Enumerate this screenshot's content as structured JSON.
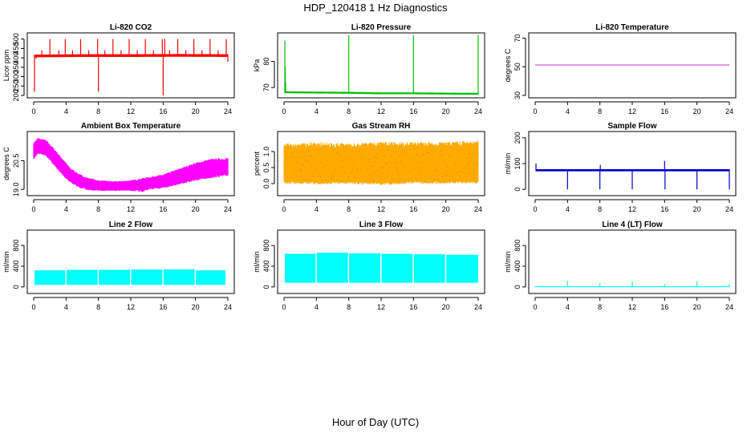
{
  "figure": {
    "title": "HDP_120418  1 Hz Diagnostics",
    "xlabel": "Hour of Day (UTC)"
  },
  "chart_data": [
    {
      "type": "line",
      "title": "Li-820 CO2",
      "ylabel": "Licor ppm",
      "color": "#ff0000",
      "xlim": [
        0,
        24
      ],
      "ylim": [
        200,
        520
      ],
      "xticks": [
        0,
        4,
        8,
        12,
        16,
        20,
        24
      ],
      "yticks": [
        200,
        250,
        300,
        350,
        400,
        450,
        500
      ],
      "style": "flat-spikes",
      "series": [
        {
          "baseline": [
            [
              0.1,
              410
            ],
            [
              6,
              412
            ],
            [
              12,
              412
            ],
            [
              18,
              413
            ],
            [
              24,
              412
            ]
          ],
          "band": 10,
          "spikes": [
            [
              0.1,
              220
            ],
            [
              0.3,
              395
            ],
            [
              1.0,
              440
            ],
            [
              2.0,
              500
            ],
            [
              3.1,
              440
            ],
            [
              3.9,
              500
            ],
            [
              4.8,
              440
            ],
            [
              5.8,
              500
            ],
            [
              6.8,
              440
            ],
            [
              7.9,
              500
            ],
            [
              8.0,
              220
            ],
            [
              8.8,
              440
            ],
            [
              9.8,
              500
            ],
            [
              10.8,
              440
            ],
            [
              11.8,
              500
            ],
            [
              12.8,
              440
            ],
            [
              13.8,
              500
            ],
            [
              14.8,
              440
            ],
            [
              15.9,
              500
            ],
            [
              16.0,
              200
            ],
            [
              16.2,
              500
            ],
            [
              16.8,
              440
            ],
            [
              17.8,
              500
            ],
            [
              18.8,
              440
            ],
            [
              19.8,
              500
            ],
            [
              20.8,
              440
            ],
            [
              21.8,
              500
            ],
            [
              22.8,
              440
            ],
            [
              23.8,
              500
            ],
            [
              24.0,
              380
            ]
          ]
        }
      ]
    },
    {
      "type": "line",
      "title": "Li-820 Pressure",
      "ylabel": "kPa",
      "color": "#00c000",
      "xlim": [
        0,
        24
      ],
      "ylim": [
        67,
        90
      ],
      "xticks": [
        0,
        4,
        8,
        12,
        16,
        20,
        24
      ],
      "yticks": [
        70,
        80
      ],
      "style": "flat-spikes",
      "series": [
        {
          "baseline": [
            [
              0.1,
              68.2
            ],
            [
              8,
              68.0
            ],
            [
              12,
              67.8
            ],
            [
              16,
              67.8
            ],
            [
              24,
              67.6
            ]
          ],
          "band": 0.4,
          "spikes": [
            [
              0.1,
              88
            ],
            [
              0.15,
              78
            ],
            [
              0.2,
              72
            ],
            [
              8.0,
              90
            ],
            [
              16.0,
              90
            ],
            [
              24.0,
              90
            ]
          ]
        }
      ]
    },
    {
      "type": "line",
      "title": "Li-820 Temperature",
      "ylabel": "degrees C",
      "color": "#cc33cc",
      "xlim": [
        0,
        24
      ],
      "ylim": [
        30,
        72
      ],
      "xticks": [
        0,
        4,
        8,
        12,
        16,
        20,
        24
      ],
      "yticks": [
        30,
        50,
        70
      ],
      "style": "line",
      "series": [
        {
          "points": [
            [
              0,
              51.3
            ],
            [
              24,
              51.3
            ]
          ]
        }
      ]
    },
    {
      "type": "area",
      "title": "Ambient Box Temperature",
      "ylabel": "degrees C",
      "color": "#ff00ff",
      "xlim": [
        0,
        24
      ],
      "ylim": [
        18.8,
        21.9
      ],
      "xticks": [
        0,
        4,
        8,
        12,
        16,
        20,
        24
      ],
      "yticks": [
        19.0,
        20.5
      ],
      "style": "band",
      "series": [
        {
          "upper": [
            [
              0,
              21.4
            ],
            [
              0.5,
              21.65
            ],
            [
              1.5,
              21.55
            ],
            [
              2.5,
              21.1
            ],
            [
              3.5,
              20.6
            ],
            [
              4.5,
              20.1
            ],
            [
              5.5,
              19.8
            ],
            [
              6.5,
              19.6
            ],
            [
              8,
              19.45
            ],
            [
              10,
              19.4
            ],
            [
              12,
              19.45
            ],
            [
              14,
              19.6
            ],
            [
              16,
              19.75
            ],
            [
              18,
              20.05
            ],
            [
              20,
              20.35
            ],
            [
              22,
              20.55
            ],
            [
              24,
              20.6
            ]
          ],
          "lower": [
            [
              0,
              20.6
            ],
            [
              0.5,
              20.9
            ],
            [
              1.5,
              20.8
            ],
            [
              2.5,
              20.3
            ],
            [
              3.5,
              19.8
            ],
            [
              4.5,
              19.4
            ],
            [
              5.5,
              19.15
            ],
            [
              6.5,
              19.0
            ],
            [
              8,
              18.95
            ],
            [
              10,
              18.95
            ],
            [
              12,
              18.95
            ],
            [
              13.5,
              18.9
            ],
            [
              14,
              19.0
            ],
            [
              16,
              19.1
            ],
            [
              18,
              19.3
            ],
            [
              20,
              19.5
            ],
            [
              22,
              19.65
            ],
            [
              24,
              19.75
            ]
          ]
        }
      ]
    },
    {
      "type": "area",
      "title": "Gas Stream RH",
      "ylabel": "percent",
      "color": "#ffaa00",
      "color2": "#806000",
      "xlim": [
        0,
        24
      ],
      "ylim": [
        -0.3,
        1.55
      ],
      "xticks": [
        0,
        4,
        8,
        12,
        16,
        20,
        24
      ],
      "yticks": [
        0.0,
        0.5,
        1.0
      ],
      "style": "dense",
      "series": [
        {
          "upper": [
            [
              0,
              1.25
            ],
            [
              4,
              1.3
            ],
            [
              8,
              1.25
            ],
            [
              12,
              1.3
            ],
            [
              16,
              1.3
            ],
            [
              20,
              1.3
            ],
            [
              24,
              1.35
            ]
          ],
          "lower": [
            [
              0,
              0.0
            ],
            [
              4,
              -0.02
            ],
            [
              8,
              0.0
            ],
            [
              12,
              -0.05
            ],
            [
              16,
              0.0
            ],
            [
              20,
              0.0
            ],
            [
              24,
              0.0
            ]
          ]
        }
      ]
    },
    {
      "type": "line",
      "title": "Sample Flow",
      "ylabel": "ml/min",
      "color": "#0000cc",
      "xlim": [
        0,
        24
      ],
      "ylim": [
        -15,
        215
      ],
      "xticks": [
        0,
        4,
        8,
        12,
        16,
        20,
        24
      ],
      "yticks": [
        0,
        100,
        200
      ],
      "style": "flat-spikes",
      "series": [
        {
          "baseline": [
            [
              0.1,
              74
            ],
            [
              24,
              74
            ]
          ],
          "band": 5,
          "spikes": [
            [
              0.1,
              100
            ],
            [
              4.0,
              0
            ],
            [
              8.0,
              0
            ],
            [
              8.05,
              95
            ],
            [
              12.0,
              0
            ],
            [
              16.0,
              110
            ],
            [
              16.05,
              0
            ],
            [
              20.0,
              0
            ],
            [
              24.0,
              0
            ]
          ]
        }
      ]
    },
    {
      "type": "area",
      "title": "Line 2 Flow",
      "ylabel": "ml/min",
      "color": "#00ffff",
      "xlim": [
        0,
        24
      ],
      "ylim": [
        -80,
        1050
      ],
      "xticks": [
        0,
        4,
        8,
        12,
        16,
        20,
        24
      ],
      "yticks": [
        0,
        400,
        800
      ],
      "style": "segments",
      "series": [
        {
          "segments": [
            [
              0.1,
              3.9,
              320
            ],
            [
              4.05,
              7.9,
              330
            ],
            [
              8.05,
              11.9,
              330
            ],
            [
              12.05,
              15.9,
              335
            ],
            [
              16.05,
              19.9,
              340
            ],
            [
              20.05,
              23.7,
              320
            ]
          ],
          "lower": 40
        }
      ]
    },
    {
      "type": "area",
      "title": "Line 3 Flow",
      "ylabel": "ml/min",
      "color": "#00ffff",
      "xlim": [
        0,
        24
      ],
      "ylim": [
        -80,
        1050
      ],
      "xticks": [
        0,
        4,
        8,
        12,
        16,
        20,
        24
      ],
      "yticks": [
        0,
        400,
        800
      ],
      "style": "segments",
      "series": [
        {
          "segments": [
            [
              0.1,
              3.9,
              640
            ],
            [
              4.05,
              7.9,
              660
            ],
            [
              8.05,
              11.9,
              650
            ],
            [
              12.05,
              15.9,
              640
            ],
            [
              16.05,
              19.9,
              630
            ],
            [
              20.05,
              24.0,
              620
            ]
          ],
          "lower": 80
        }
      ]
    },
    {
      "type": "line",
      "title": "Line 4 (LT) Flow",
      "ylabel": "ml/min",
      "color": "#00ffff",
      "xlim": [
        0,
        24
      ],
      "ylim": [
        -80,
        1050
      ],
      "xticks": [
        0,
        4,
        8,
        12,
        16,
        20,
        24
      ],
      "yticks": [
        0,
        400,
        800
      ],
      "style": "flat-spikes",
      "series": [
        {
          "baseline": [
            [
              0,
              5
            ],
            [
              24,
              5
            ]
          ],
          "band": 2,
          "spikes": [
            [
              4.0,
              120
            ],
            [
              8.0,
              70
            ],
            [
              12.0,
              110
            ],
            [
              16.0,
              50
            ],
            [
              20.0,
              110
            ],
            [
              24.0,
              50
            ]
          ]
        }
      ]
    }
  ]
}
